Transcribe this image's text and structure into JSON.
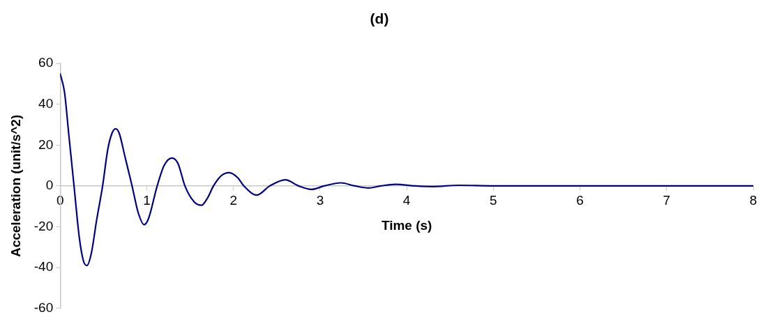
{
  "chart_data": {
    "type": "line",
    "title": "(d)",
    "xlabel": "Time (s)",
    "ylabel": "Acceleration (unit/s^2)",
    "xlim": [
      0,
      8
    ],
    "xticks": [
      0,
      1,
      2,
      3,
      4,
      5,
      6,
      7,
      8
    ],
    "ylim": [
      -60,
      60
    ],
    "yticks": [
      -60,
      -40,
      -20,
      0,
      20,
      40,
      60
    ],
    "grid": false,
    "legend": false,
    "marker": "none",
    "line_style": "solid",
    "series": [
      {
        "color": "#000080",
        "x": [
          0,
          0.05,
          0.1,
          0.16,
          0.22,
          0.27,
          0.31,
          0.36,
          0.42,
          0.49,
          0.55,
          0.6,
          0.64,
          0.68,
          0.75,
          0.83,
          0.9,
          0.97,
          1.02,
          1.12,
          1.2,
          1.29,
          1.36,
          1.44,
          1.55,
          1.63,
          1.7,
          1.77,
          1.86,
          1.95,
          2.05,
          2.12,
          2.27,
          2.42,
          2.6,
          2.75,
          2.9,
          3.05,
          3.24,
          3.4,
          3.56,
          3.7,
          3.87,
          4.1,
          4.3,
          4.6,
          5,
          6,
          7,
          8
        ],
        "values": [
          55,
          46,
          25,
          0,
          -25,
          -37,
          -39,
          -33,
          -17,
          0,
          18,
          26,
          28,
          26,
          14,
          0,
          -13,
          -19,
          -16,
          0,
          10,
          13.7,
          11,
          0,
          -8,
          -9.5,
          -6,
          0,
          5,
          6.5,
          4,
          0,
          -4.5,
          0,
          3,
          0,
          -1.7,
          0,
          1.5,
          0,
          -1,
          0,
          0.8,
          0,
          -0.3,
          0.3,
          0,
          0,
          0,
          0
        ]
      }
    ]
  }
}
